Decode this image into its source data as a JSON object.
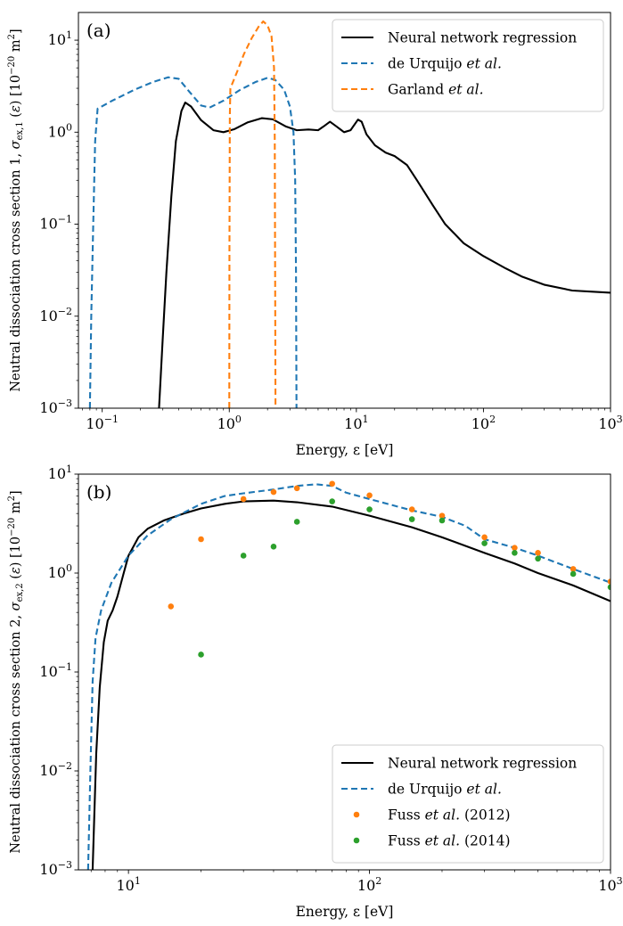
{
  "chart_data": [
    {
      "type": "line",
      "panel_label": "(a)",
      "xlabel": "Energy, ε [eV]",
      "ylabel": "Neutral dissociation cross section 1, σ_ex,1 (ε) [10⁻²⁰ m²]",
      "xscale": "log",
      "yscale": "log",
      "xlim": [
        0.065,
        1000
      ],
      "ylim": [
        0.001,
        20
      ],
      "x_ticks": [
        {
          "value": 0.1,
          "label": "10⁻¹"
        },
        {
          "value": 1,
          "label": "10⁰"
        },
        {
          "value": 10,
          "label": "10¹"
        },
        {
          "value": 100,
          "label": "10²"
        },
        {
          "value": 1000,
          "label": "10³"
        }
      ],
      "y_ticks": [
        {
          "value": 0.001,
          "label": "10⁻³"
        },
        {
          "value": 0.01,
          "label": "10⁻²"
        },
        {
          "value": 0.1,
          "label": "10⁻¹"
        },
        {
          "value": 1,
          "label": "10⁰"
        },
        {
          "value": 10,
          "label": "10¹"
        }
      ],
      "grid": false,
      "legend_position": "top-right",
      "series": [
        {
          "name": "Neural network regression",
          "style": "solid",
          "color": "#000000",
          "points": [
            [
              0.28,
              0.001
            ],
            [
              0.3,
              0.006
            ],
            [
              0.32,
              0.03
            ],
            [
              0.35,
              0.2
            ],
            [
              0.38,
              0.8
            ],
            [
              0.42,
              1.7
            ],
            [
              0.45,
              2.1
            ],
            [
              0.5,
              1.9
            ],
            [
              0.6,
              1.35
            ],
            [
              0.75,
              1.05
            ],
            [
              0.9,
              1.0
            ],
            [
              1.1,
              1.08
            ],
            [
              1.4,
              1.28
            ],
            [
              1.8,
              1.42
            ],
            [
              2.2,
              1.38
            ],
            [
              2.8,
              1.15
            ],
            [
              3.4,
              1.05
            ],
            [
              4.2,
              1.07
            ],
            [
              5.0,
              1.05
            ],
            [
              5.5,
              1.15
            ],
            [
              6.2,
              1.3
            ],
            [
              7.0,
              1.15
            ],
            [
              8.0,
              1.0
            ],
            [
              9.0,
              1.05
            ],
            [
              10.3,
              1.37
            ],
            [
              11.0,
              1.3
            ],
            [
              12.0,
              0.95
            ],
            [
              14.0,
              0.72
            ],
            [
              17.0,
              0.6
            ],
            [
              20.0,
              0.55
            ],
            [
              25.0,
              0.44
            ],
            [
              30.0,
              0.3
            ],
            [
              40.0,
              0.16
            ],
            [
              50.0,
              0.1
            ],
            [
              70.0,
              0.062
            ],
            [
              100.0,
              0.045
            ],
            [
              150.0,
              0.033
            ],
            [
              200.0,
              0.027
            ],
            [
              300.0,
              0.022
            ],
            [
              500.0,
              0.019
            ],
            [
              700.0,
              0.0185
            ],
            [
              1000.0,
              0.018
            ]
          ]
        },
        {
          "name": "de Urquijo et al.",
          "name_prefix": "de Urquijo ",
          "name_italic": "et al.",
          "style": "dashed",
          "color": "#1f77b4",
          "points": [
            [
              0.08,
              0.001
            ],
            [
              0.082,
              0.01
            ],
            [
              0.085,
              0.1
            ],
            [
              0.088,
              0.8
            ],
            [
              0.092,
              1.8
            ],
            [
              0.12,
              2.2
            ],
            [
              0.18,
              2.9
            ],
            [
              0.25,
              3.5
            ],
            [
              0.33,
              3.95
            ],
            [
              0.4,
              3.8
            ],
            [
              0.48,
              2.8
            ],
            [
              0.6,
              1.95
            ],
            [
              0.7,
              1.85
            ],
            [
              0.9,
              2.2
            ],
            [
              1.2,
              2.85
            ],
            [
              1.6,
              3.5
            ],
            [
              2.0,
              3.9
            ],
            [
              2.3,
              3.7
            ],
            [
              2.7,
              2.9
            ],
            [
              3.0,
              1.9
            ],
            [
              3.2,
              1.0
            ],
            [
              3.3,
              0.3
            ],
            [
              3.35,
              0.03
            ],
            [
              3.38,
              0.001
            ]
          ]
        },
        {
          "name": "Garland et al.",
          "name_prefix": "Garland ",
          "name_italic": "et al.",
          "style": "dashed",
          "color": "#ff7f0e",
          "points": [
            [
              1.0,
              0.001
            ],
            [
              1.003,
              0.05
            ],
            [
              1.01,
              1.5
            ],
            [
              1.02,
              3.0
            ],
            [
              1.15,
              4.5
            ],
            [
              1.3,
              7.0
            ],
            [
              1.5,
              10.5
            ],
            [
              1.7,
              14.0
            ],
            [
              1.85,
              16.0
            ],
            [
              2.0,
              14.5
            ],
            [
              2.15,
              11.0
            ],
            [
              2.25,
              5.0
            ],
            [
              2.28,
              0.8
            ],
            [
              2.3,
              0.01
            ],
            [
              2.31,
              0.001
            ]
          ]
        }
      ]
    },
    {
      "type": "line",
      "panel_label": "(b)",
      "xlabel": "Energy, ε [eV]",
      "ylabel": "Neutral dissociation cross section 2, σ_ex,2 (ε) [10⁻²⁰ m²]",
      "xscale": "log",
      "yscale": "log",
      "xlim": [
        6.2,
        1000
      ],
      "ylim": [
        0.001,
        10
      ],
      "x_ticks": [
        {
          "value": 10,
          "label": "10¹"
        },
        {
          "value": 100,
          "label": "10²"
        },
        {
          "value": 1000,
          "label": "10³"
        }
      ],
      "y_ticks": [
        {
          "value": 0.001,
          "label": "10⁻³"
        },
        {
          "value": 0.01,
          "label": "10⁻²"
        },
        {
          "value": 0.1,
          "label": "10⁻¹"
        },
        {
          "value": 1,
          "label": "10⁰"
        },
        {
          "value": 10,
          "label": "10¹"
        }
      ],
      "grid": false,
      "legend_position": "bottom-right",
      "series": [
        {
          "name": "Neural network regression",
          "style": "solid",
          "color": "#000000",
          "points": [
            [
              7.1,
              0.001
            ],
            [
              7.2,
              0.003
            ],
            [
              7.35,
              0.015
            ],
            [
              7.6,
              0.07
            ],
            [
              7.9,
              0.2
            ],
            [
              8.2,
              0.33
            ],
            [
              8.6,
              0.42
            ],
            [
              9.0,
              0.58
            ],
            [
              9.5,
              0.95
            ],
            [
              10.0,
              1.5
            ],
            [
              11.0,
              2.3
            ],
            [
              12.0,
              2.8
            ],
            [
              14.0,
              3.4
            ],
            [
              17.0,
              4.0
            ],
            [
              20.0,
              4.5
            ],
            [
              25.0,
              5.0
            ],
            [
              30.0,
              5.3
            ],
            [
              40.0,
              5.4
            ],
            [
              50.0,
              5.2
            ],
            [
              70.0,
              4.7
            ],
            [
              100.0,
              3.8
            ],
            [
              150.0,
              2.9
            ],
            [
              200.0,
              2.3
            ],
            [
              300.0,
              1.6
            ],
            [
              400.0,
              1.25
            ],
            [
              500.0,
              1.0
            ],
            [
              700.0,
              0.75
            ],
            [
              1000.0,
              0.52
            ]
          ]
        },
        {
          "name": "de Urquijo et al.",
          "name_prefix": "de Urquijo ",
          "name_italic": "et al.",
          "style": "dashed",
          "color": "#1f77b4",
          "points": [
            [
              6.8,
              0.001
            ],
            [
              6.95,
              0.01
            ],
            [
              7.1,
              0.08
            ],
            [
              7.3,
              0.22
            ],
            [
              7.7,
              0.42
            ],
            [
              8.5,
              0.8
            ],
            [
              10.0,
              1.5
            ],
            [
              12.0,
              2.4
            ],
            [
              15.0,
              3.5
            ],
            [
              20.0,
              5.0
            ],
            [
              25.0,
              6.0
            ],
            [
              30.0,
              6.4
            ],
            [
              40.0,
              7.0
            ],
            [
              50.0,
              7.6
            ],
            [
              60.0,
              7.9
            ],
            [
              70.0,
              7.6
            ],
            [
              80.0,
              6.5
            ],
            [
              100.0,
              5.6
            ],
            [
              150.0,
              4.3
            ],
            [
              200.0,
              3.7
            ],
            [
              250.0,
              3.0
            ],
            [
              300.0,
              2.2
            ],
            [
              400.0,
              1.8
            ],
            [
              500.0,
              1.5
            ],
            [
              700.0,
              1.1
            ],
            [
              1000.0,
              0.8
            ]
          ]
        },
        {
          "name": "Fuss et al. (2012)",
          "name_prefix": "Fuss ",
          "name_italic": "et al.",
          "name_suffix": " (2012)",
          "style": "markers",
          "color": "#ff7f0e",
          "points": [
            [
              15,
              0.46
            ],
            [
              20,
              2.2
            ],
            [
              30,
              5.6
            ],
            [
              40,
              6.6
            ],
            [
              50,
              7.2
            ],
            [
              70,
              8.0
            ],
            [
              100,
              6.1
            ],
            [
              150,
              4.4
            ],
            [
              200,
              3.8
            ],
            [
              300,
              2.3
            ],
            [
              400,
              1.8
            ],
            [
              500,
              1.6
            ],
            [
              700,
              1.1
            ],
            [
              1000,
              0.82
            ]
          ]
        },
        {
          "name": "Fuss et al. (2014)",
          "name_prefix": "Fuss ",
          "name_italic": "et al.",
          "name_suffix": " (2014)",
          "style": "markers",
          "color": "#2ca02c",
          "points": [
            [
              20,
              0.15
            ],
            [
              30,
              1.5
            ],
            [
              40,
              1.85
            ],
            [
              50,
              3.3
            ],
            [
              70,
              5.3
            ],
            [
              100,
              4.4
            ],
            [
              150,
              3.5
            ],
            [
              200,
              3.4
            ],
            [
              300,
              2.0
            ],
            [
              400,
              1.6
            ],
            [
              500,
              1.4
            ],
            [
              700,
              0.98
            ],
            [
              1000,
              0.72
            ]
          ]
        }
      ]
    }
  ]
}
